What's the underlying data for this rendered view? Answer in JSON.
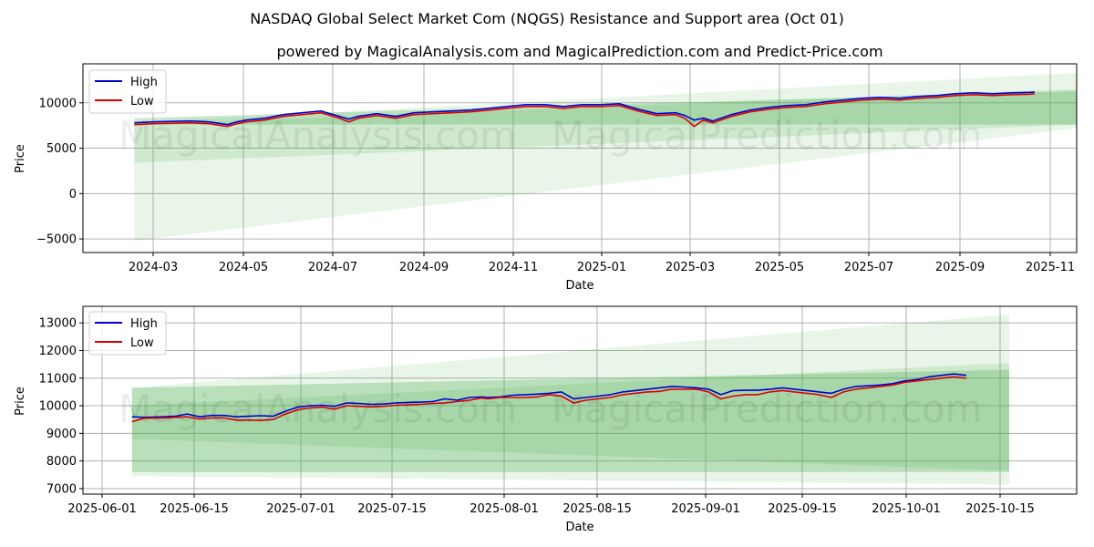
{
  "title": "NASDAQ Global Select Market Com (NQGS) Resistance and Support area (Oct 01)",
  "subtitle": "powered by MagicalAnalysis.com and MagicalPrediction.com and Predict-Price.com",
  "watermarks": [
    "MagicalAnalysis.com",
    "MagicalPrediction.com"
  ],
  "colors": {
    "high": "#0000cc",
    "low": "#dd0000",
    "band": "#4caf50",
    "grid": "#b0b0b0"
  },
  "chart_data": [
    {
      "type": "line",
      "title": "",
      "xlabel": "Date",
      "ylabel": "Price",
      "grid": true,
      "legend": "top-left",
      "x_ticks": [
        "2024-03",
        "2024-05",
        "2024-07",
        "2024-09",
        "2024-11",
        "2025-01",
        "2025-03",
        "2025-05",
        "2025-07",
        "2025-09",
        "2025-11"
      ],
      "y_ticks": [
        "−5000",
        "0",
        "5000",
        "10000"
      ],
      "y_tick_values": [
        -5000,
        0,
        5000,
        10000
      ],
      "ylim": [
        -6500,
        14300
      ],
      "xlim_days": [
        -55,
        1010
      ],
      "series": [
        {
          "name": "High",
          "color": "#0000cc",
          "x": [
            0,
            20,
            40,
            60,
            80,
            100,
            110,
            120,
            140,
            160,
            180,
            200,
            220,
            230,
            240,
            260,
            280,
            300,
            320,
            340,
            360,
            380,
            400,
            420,
            440,
            460,
            480,
            500,
            520,
            540,
            560,
            580,
            590,
            600,
            610,
            620,
            640,
            660,
            680,
            700,
            720,
            740,
            760,
            780,
            800,
            820,
            840,
            860,
            880,
            900,
            920,
            940,
            960,
            965
          ],
          "values": [
            7800,
            7900,
            7950,
            8000,
            7900,
            7600,
            7900,
            8100,
            8300,
            8700,
            8900,
            9100,
            8500,
            8200,
            8500,
            8800,
            8500,
            8900,
            9000,
            9100,
            9200,
            9400,
            9600,
            9800,
            9800,
            9600,
            9800,
            9800,
            9900,
            9300,
            8800,
            8900,
            8600,
            8100,
            8300,
            8000,
            8700,
            9200,
            9500,
            9700,
            9800,
            10100,
            10300,
            10500,
            10600,
            10500,
            10700,
            10800,
            11000,
            11100,
            11000,
            11100,
            11150,
            11200
          ]
        },
        {
          "name": "Low",
          "color": "#dd0000",
          "x": [
            0,
            20,
            40,
            60,
            80,
            100,
            110,
            120,
            140,
            160,
            180,
            200,
            220,
            230,
            240,
            260,
            280,
            300,
            320,
            340,
            360,
            380,
            400,
            420,
            440,
            460,
            480,
            500,
            520,
            540,
            560,
            580,
            590,
            600,
            610,
            620,
            640,
            660,
            680,
            700,
            720,
            740,
            760,
            780,
            800,
            820,
            840,
            860,
            880,
            900,
            920,
            940,
            960,
            965
          ],
          "values": [
            7600,
            7700,
            7750,
            7800,
            7700,
            7400,
            7700,
            7900,
            8100,
            8500,
            8700,
            8900,
            8300,
            7900,
            8300,
            8600,
            8300,
            8700,
            8800,
            8900,
            9000,
            9200,
            9400,
            9600,
            9600,
            9400,
            9600,
            9600,
            9700,
            9100,
            8600,
            8700,
            8300,
            7400,
            8100,
            7800,
            8500,
            9000,
            9300,
            9500,
            9600,
            9900,
            10100,
            10300,
            10400,
            10300,
            10500,
            10600,
            10800,
            10900,
            10800,
            10900,
            10950,
            11000
          ]
        }
      ],
      "bands": [
        {
          "name": "outer",
          "x": [
            0,
            1010
          ],
          "upper": [
            7800,
            13300
          ],
          "lower": [
            -5200,
            7200
          ],
          "opacity": 0.13
        },
        {
          "name": "middle",
          "x": [
            0,
            1010
          ],
          "upper": [
            7600,
            11500
          ],
          "lower": [
            3400,
            7600
          ],
          "opacity": 0.17
        },
        {
          "name": "inner",
          "x": [
            0,
            1010
          ],
          "upper": [
            8300,
            11300
          ],
          "lower": [
            7600,
            7600
          ],
          "opacity": 0.3
        }
      ]
    },
    {
      "type": "line",
      "title": "",
      "xlabel": "Date",
      "ylabel": "Price",
      "grid": true,
      "legend": "top-left",
      "x_ticks": [
        "2025-06-01",
        "2025-06-15",
        "2025-07-01",
        "2025-07-15",
        "2025-08-01",
        "2025-08-15",
        "2025-09-01",
        "2025-09-15",
        "2025-10-01",
        "2025-10-15"
      ],
      "y_ticks": [
        "7000",
        "8000",
        "9000",
        "10000",
        "11000",
        "12000",
        "13000"
      ],
      "y_tick_values": [
        7000,
        8000,
        9000,
        10000,
        11000,
        12000,
        13000
      ],
      "ylim": [
        6800,
        13600
      ],
      "xlim_days": [
        -8,
        154
      ],
      "series": [
        {
          "name": "High",
          "color": "#0000cc",
          "x": [
            0,
            2,
            5,
            7,
            9,
            11,
            13,
            15,
            17,
            19,
            21,
            23,
            25,
            27,
            29,
            31,
            33,
            35,
            37,
            39,
            41,
            43,
            45,
            47,
            49,
            51,
            53,
            55,
            57,
            58,
            60,
            62,
            64,
            66,
            68,
            70,
            72,
            74,
            76,
            78,
            80,
            82,
            84,
            86,
            88,
            90,
            92,
            94,
            96,
            98,
            100,
            102,
            104,
            106,
            108,
            110,
            112,
            114,
            116,
            118,
            120,
            122,
            124,
            126,
            128,
            130,
            132,
            134,
            136
          ],
          "values": [
            9600,
            9580,
            9600,
            9620,
            9700,
            9600,
            9650,
            9650,
            9600,
            9620,
            9640,
            9620,
            9800,
            9950,
            10000,
            10020,
            9980,
            10100,
            10080,
            10050,
            10060,
            10100,
            10120,
            10130,
            10150,
            10250,
            10200,
            10300,
            10320,
            10300,
            10320,
            10380,
            10400,
            10420,
            10450,
            10500,
            10250,
            10300,
            10350,
            10400,
            10500,
            10550,
            10600,
            10650,
            10700,
            10680,
            10650,
            10600,
            10400,
            10550,
            10560,
            10560,
            10600,
            10650,
            10600,
            10550,
            10500,
            10450,
            10600,
            10700,
            10720,
            10750,
            10800,
            10900,
            10950,
            11050,
            11100,
            11150,
            11100
          ]
        },
        {
          "name": "Low",
          "color": "#dd0000",
          "x": [
            0,
            2,
            5,
            7,
            9,
            11,
            13,
            15,
            17,
            19,
            21,
            23,
            25,
            27,
            29,
            31,
            33,
            35,
            37,
            39,
            41,
            43,
            45,
            47,
            49,
            51,
            53,
            55,
            57,
            58,
            60,
            62,
            64,
            66,
            68,
            70,
            72,
            74,
            76,
            78,
            80,
            82,
            84,
            86,
            88,
            90,
            92,
            94,
            96,
            98,
            100,
            102,
            104,
            106,
            108,
            110,
            112,
            114,
            116,
            118,
            120,
            122,
            124,
            126,
            128,
            130,
            132,
            134,
            136
          ],
          "values": [
            9420,
            9550,
            9560,
            9580,
            9600,
            9520,
            9560,
            9560,
            9480,
            9480,
            9470,
            9500,
            9700,
            9850,
            9920,
            9950,
            9880,
            10000,
            9980,
            9960,
            9980,
            10020,
            10030,
            10050,
            10080,
            10100,
            10150,
            10200,
            10280,
            10250,
            10300,
            10300,
            10300,
            10320,
            10400,
            10350,
            10100,
            10200,
            10250,
            10300,
            10400,
            10450,
            10500,
            10520,
            10600,
            10600,
            10600,
            10500,
            10250,
            10350,
            10400,
            10400,
            10500,
            10550,
            10500,
            10450,
            10400,
            10300,
            10500,
            10600,
            10650,
            10700,
            10750,
            10850,
            10900,
            10950,
            11000,
            11050,
            11000
          ]
        }
      ],
      "bands": [
        {
          "name": "outer",
          "x": [
            0,
            143
          ],
          "upper": [
            10650,
            13300
          ],
          "lower": [
            7450,
            7150
          ],
          "opacity": 0.13
        },
        {
          "name": "middle",
          "x": [
            0,
            143
          ],
          "upper": [
            10000,
            11550
          ],
          "lower": [
            8800,
            7650
          ],
          "opacity": 0.17
        },
        {
          "name": "inner",
          "x": [
            0,
            143
          ],
          "upper": [
            10650,
            11300
          ],
          "lower": [
            7600,
            7600
          ],
          "opacity": 0.3
        }
      ]
    }
  ]
}
